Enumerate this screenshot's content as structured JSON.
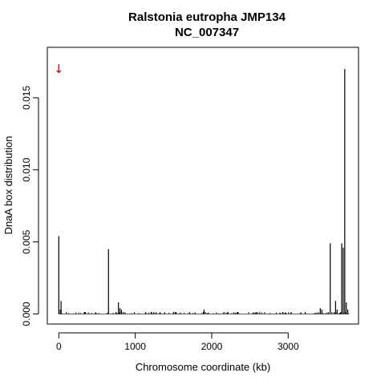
{
  "chart_data": {
    "type": "bar",
    "title": "Ralstonia eutropha JMP134",
    "subtitle": "NC_007347",
    "xlabel": "Chromosome coordinate (kb)",
    "ylabel": "DnaA box distribution",
    "xlim": [
      -150,
      3920
    ],
    "ylim": [
      -0.0007,
      0.0185
    ],
    "x_ticks": [
      0,
      1000,
      2000,
      3000
    ],
    "x_tick_labels": [
      "0",
      "1000",
      "2000",
      "3000"
    ],
    "y_ticks": [
      0.0,
      0.005,
      0.01,
      0.015
    ],
    "y_tick_labels": [
      "0.000",
      "0.005",
      "0.010",
      "0.015"
    ],
    "marker": {
      "symbol": "↓",
      "x": 0,
      "y": 0.017,
      "color": "#cc0000"
    },
    "series": [
      {
        "x": [
          0,
          20,
          30,
          650,
          780,
          800,
          820,
          1900,
          3420,
          3440,
          3550,
          3620,
          3640,
          3700,
          3720,
          3740,
          3760,
          3780
        ],
        "values": [
          0.0054,
          0.0003,
          0.0009,
          0.0045,
          0.0008,
          0.0004,
          0.0003,
          0.0003,
          0.0004,
          0.0003,
          0.0049,
          0.0009,
          0.0003,
          0.0049,
          0.0046,
          0.017,
          0.0008,
          0.0003
        ]
      }
    ],
    "noise_range": [
      0,
      0.00015
    ],
    "grid": false
  }
}
